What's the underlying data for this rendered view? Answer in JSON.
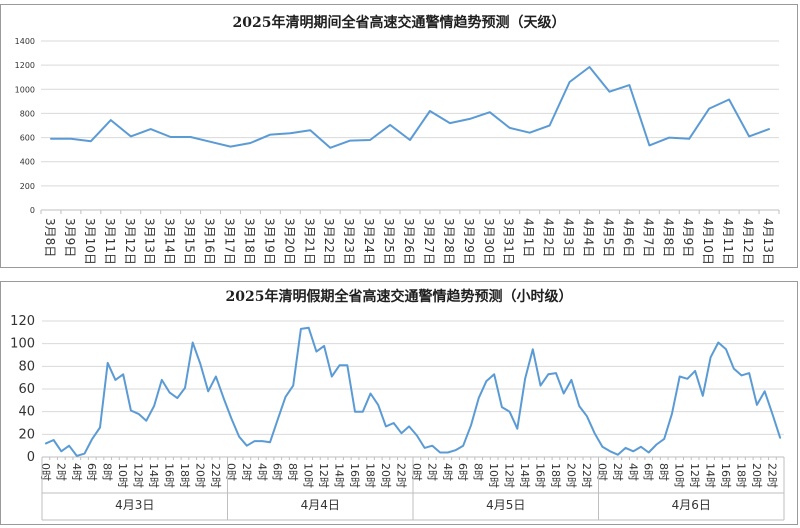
{
  "chart_data": [
    {
      "type": "line",
      "title": "2025年清明期间全省高速交通警情趋势预测（天级）",
      "xlabel": "",
      "ylabel": "",
      "ylim": [
        0,
        1400
      ],
      "yticks": [
        "0",
        "200",
        "400",
        "600",
        "800",
        "1000",
        "1200",
        "1400"
      ],
      "grid": true,
      "legend": "none",
      "color": "#5b9bd5",
      "categories": [
        "3月8日",
        "3月9日",
        "3月10日",
        "3月11日",
        "3月12日",
        "3月13日",
        "3月14日",
        "3月15日",
        "3月16日",
        "3月17日",
        "3月18日",
        "3月19日",
        "3月20日",
        "3月21日",
        "3月22日",
        "3月23日",
        "3月24日",
        "3月25日",
        "3月26日",
        "3月27日",
        "3月28日",
        "3月29日",
        "3月30日",
        "3月31日",
        "4月1日",
        "4月2日",
        "4月3日",
        "4月4日",
        "4月5日",
        "4月6日",
        "4月7日",
        "4月8日",
        "4月9日",
        "4月10日",
        "4月11日",
        "4月12日",
        "4月13日"
      ],
      "series": [
        {
          "values": [
            590,
            590,
            570,
            745,
            610,
            670,
            605,
            605,
            565,
            525,
            555,
            625,
            635,
            660,
            515,
            575,
            580,
            705,
            580,
            820,
            720,
            755,
            810,
            680,
            640,
            700,
            1060,
            1185,
            980,
            1035,
            535,
            600,
            590,
            840,
            915,
            610,
            670
          ]
        }
      ]
    },
    {
      "type": "line",
      "title": "2025年清明假期全省高速交通警情趋势预测（小时级）",
      "xlabel": "",
      "ylabel": "",
      "ylim": [
        0,
        120
      ],
      "yticks": [
        "0",
        "20",
        "40",
        "60",
        "80",
        "100",
        "120"
      ],
      "grid": true,
      "legend": "none",
      "color": "#5b9bd5",
      "hour_tick_labels": [
        "0时",
        "2时",
        "4时",
        "6时",
        "8时",
        "10时",
        "12时",
        "14时",
        "16时",
        "18时",
        "20时",
        "22时"
      ],
      "groups": [
        "4月3日",
        "4月4日",
        "4月5日",
        "4月6日"
      ],
      "series": [
        {
          "values": [
            12,
            15,
            5,
            10,
            1,
            3,
            16,
            26,
            83,
            68,
            73,
            41,
            38,
            32,
            45,
            68,
            57,
            52,
            61,
            101,
            82,
            58,
            71,
            52,
            34,
            18,
            10,
            14,
            14,
            13,
            33,
            53,
            63,
            113,
            114,
            93,
            98,
            71,
            81,
            81,
            40,
            40,
            56,
            46,
            27,
            30,
            21,
            27,
            19,
            8,
            10,
            4,
            4,
            6,
            10,
            28,
            52,
            67,
            73,
            44,
            40,
            25,
            69,
            95,
            63,
            73,
            74,
            56,
            68,
            45,
            36,
            21,
            9,
            5,
            2,
            8,
            5,
            9,
            4,
            11,
            16,
            38,
            71,
            69,
            76,
            54,
            88,
            101,
            95,
            78,
            72,
            74,
            46,
            58,
            38,
            17
          ]
        }
      ]
    }
  ]
}
